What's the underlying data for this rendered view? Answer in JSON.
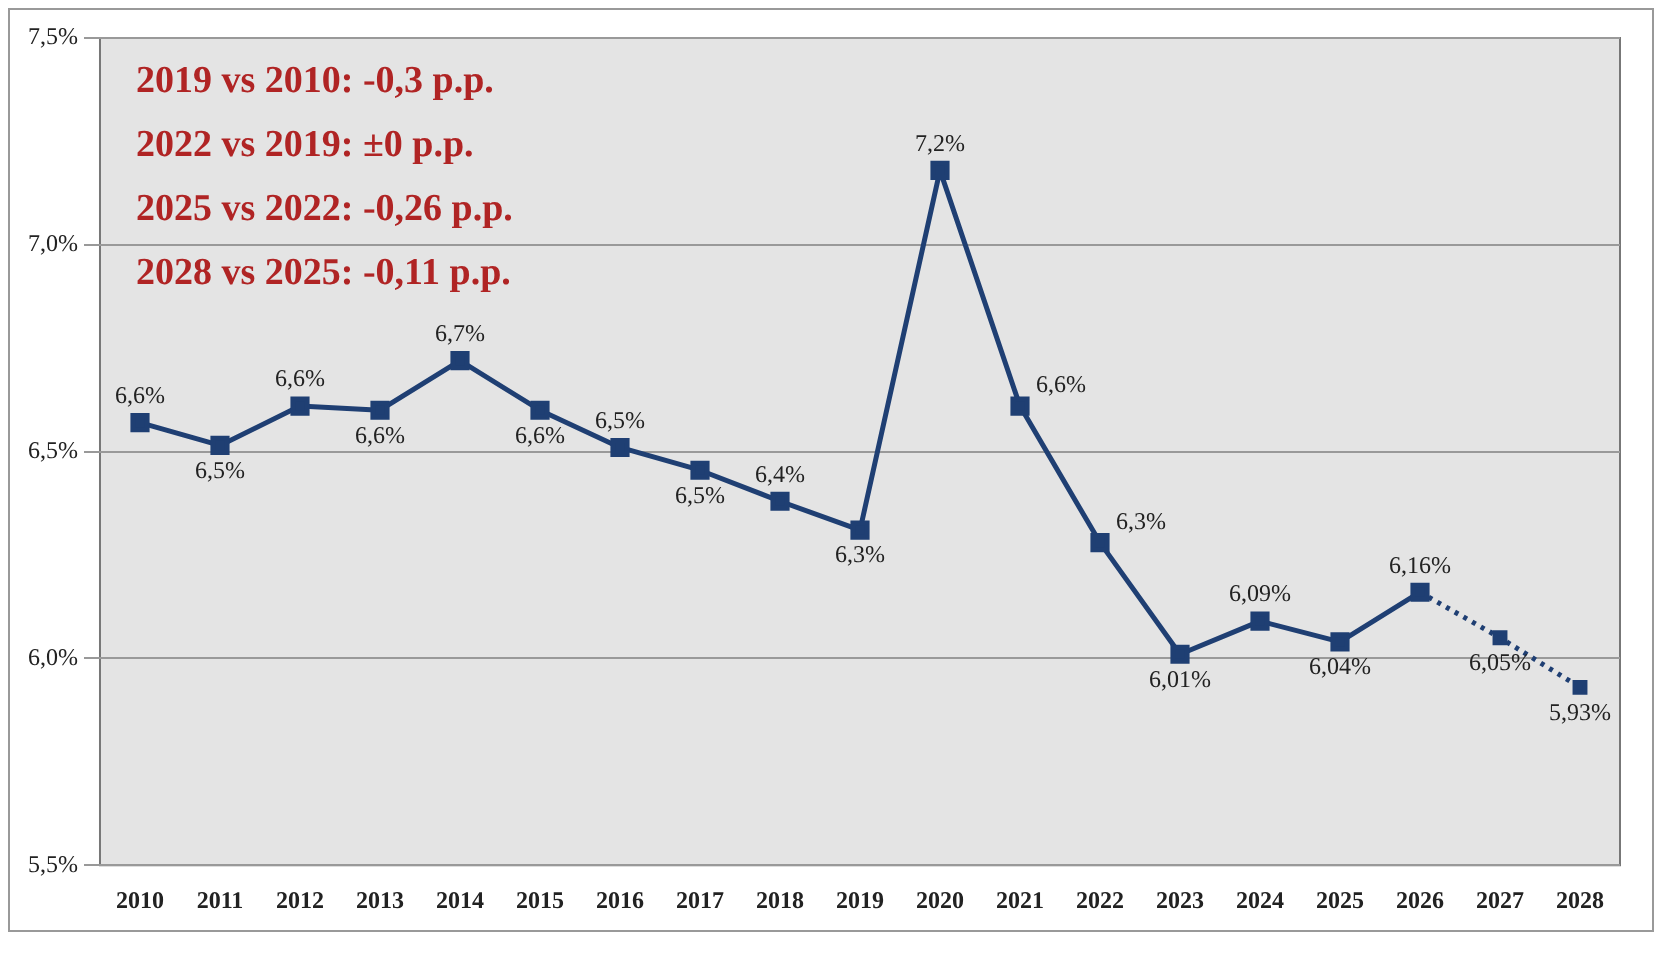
{
  "chart_data": {
    "type": "line",
    "categories": [
      "2010",
      "2011",
      "2012",
      "2013",
      "2014",
      "2015",
      "2016",
      "2017",
      "2018",
      "2019",
      "2020",
      "2021",
      "2022",
      "2023",
      "2024",
      "2025",
      "2026",
      "2027",
      "2028"
    ],
    "series": [
      {
        "color": "#1f3f73",
        "line_style": "solid",
        "values": [
          6.57,
          6.515,
          6.61,
          6.6,
          6.72,
          6.6,
          6.51,
          6.455,
          6.38,
          6.31,
          7.18,
          6.61,
          6.28,
          6.01,
          6.09,
          6.04,
          6.16,
          null,
          null
        ],
        "value_labels": [
          "6,6%",
          "6,5%",
          "6,6%",
          "6,6%",
          "6,7%",
          "6,6%",
          "6,5%",
          "6,5%",
          "6,4%",
          "6,3%",
          "7,2%",
          "6,6%",
          "6,3%",
          "6,01%",
          "6,09%",
          "6,04%",
          "6,16%",
          null,
          null
        ]
      },
      {
        "color": "#1f3f73",
        "line_style": "dotted",
        "values": [
          null,
          null,
          null,
          null,
          null,
          null,
          null,
          null,
          null,
          null,
          null,
          null,
          null,
          null,
          null,
          null,
          6.16,
          6.05,
          5.93
        ],
        "value_labels": [
          null,
          null,
          null,
          null,
          null,
          null,
          null,
          null,
          null,
          null,
          null,
          null,
          null,
          null,
          null,
          null,
          null,
          "6,05%",
          "5,93%"
        ]
      }
    ],
    "ylim": [
      5.5,
      7.5
    ],
    "yticks": [
      {
        "value": 5.5,
        "label": "5,5%"
      },
      {
        "value": 6.0,
        "label": "6,0%"
      },
      {
        "value": 6.5,
        "label": "6,5%"
      },
      {
        "value": 7.0,
        "label": "7,0%"
      },
      {
        "value": 7.5,
        "label": "7,5%"
      }
    ],
    "grid": "y",
    "legend": false,
    "marker": "square",
    "annotations": [
      "2019 vs 2010: -0,3 p.p.",
      "2022 vs 2019: ±0 p.p.",
      "2025 vs 2022: -0,26 p.p.",
      "2028 vs 2025: -0,11 p.p."
    ]
  }
}
